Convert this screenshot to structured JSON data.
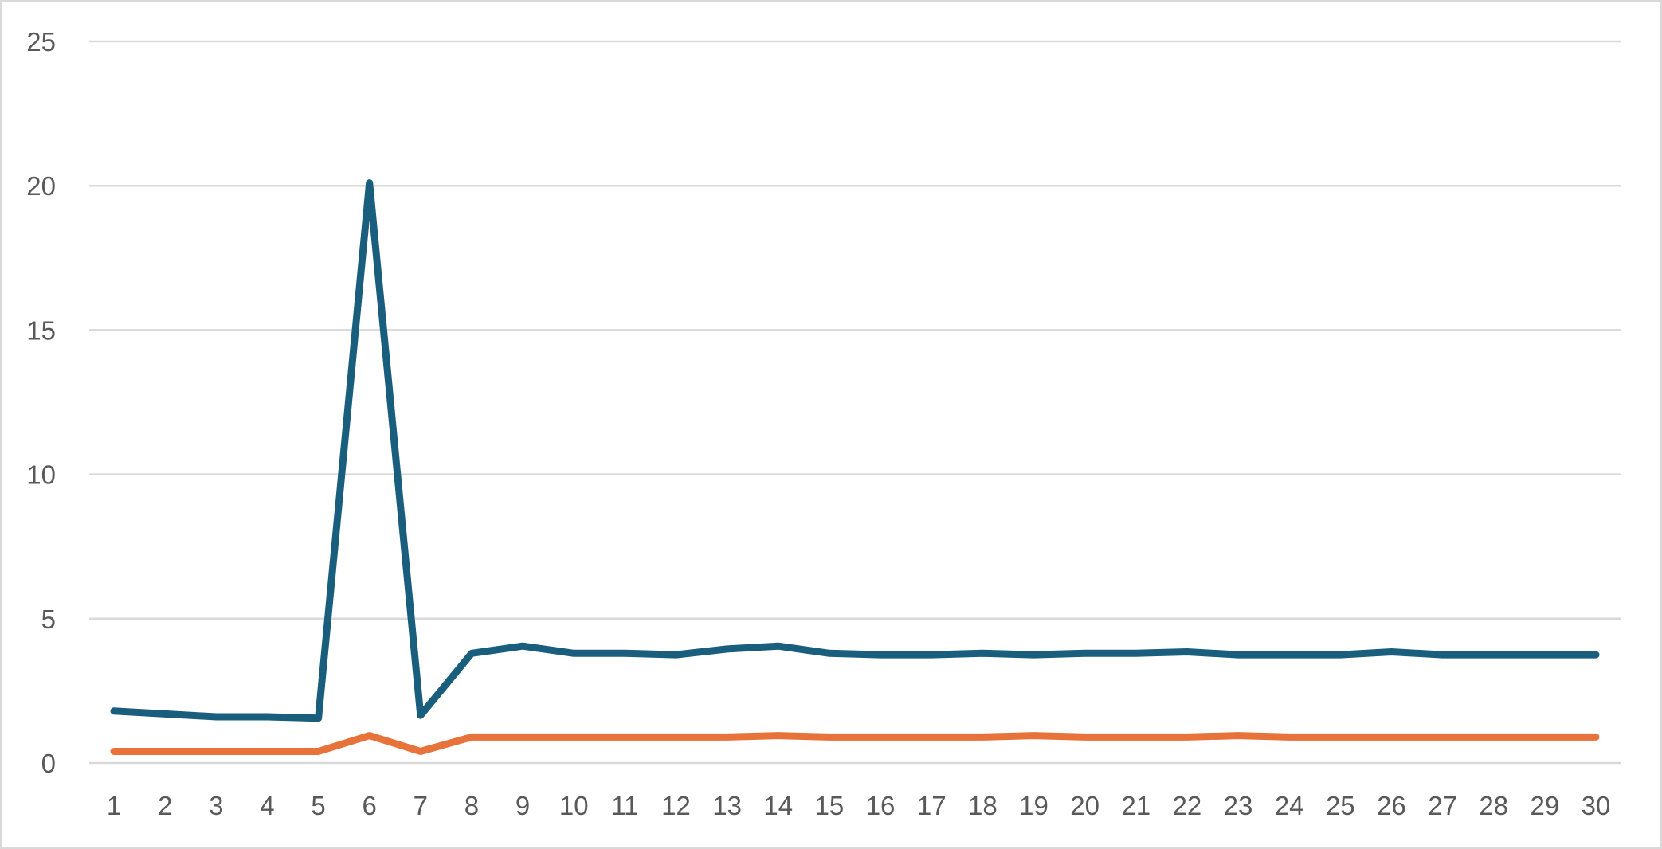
{
  "chart_data": {
    "type": "line",
    "title": "",
    "xlabel": "",
    "ylabel": "",
    "grid": true,
    "legend": "none",
    "ylim": [
      0,
      25
    ],
    "yticks": [
      "0",
      "5",
      "10",
      "15",
      "20",
      "25"
    ],
    "categories": [
      "1",
      "2",
      "3",
      "4",
      "5",
      "6",
      "7",
      "8",
      "9",
      "10",
      "11",
      "12",
      "13",
      "14",
      "15",
      "16",
      "17",
      "18",
      "19",
      "20",
      "21",
      "22",
      "23",
      "24",
      "25",
      "26",
      "27",
      "28",
      "29",
      "30"
    ],
    "series": [
      {
        "color": "#1a5e7e",
        "values": [
          1.8,
          1.7,
          1.6,
          1.6,
          1.55,
          20.1,
          1.65,
          3.8,
          4.05,
          3.8,
          3.8,
          3.75,
          3.95,
          4.05,
          3.8,
          3.75,
          3.75,
          3.8,
          3.75,
          3.8,
          3.8,
          3.85,
          3.75,
          3.75,
          3.75,
          3.85,
          3.75,
          3.75,
          3.75,
          3.75
        ]
      },
      {
        "color": "#e8733a",
        "values": [
          0.4,
          0.4,
          0.4,
          0.4,
          0.4,
          0.95,
          0.4,
          0.9,
          0.9,
          0.9,
          0.9,
          0.9,
          0.9,
          0.95,
          0.9,
          0.9,
          0.9,
          0.9,
          0.95,
          0.9,
          0.9,
          0.9,
          0.95,
          0.9,
          0.9,
          0.9,
          0.9,
          0.9,
          0.9,
          0.9
        ]
      }
    ]
  }
}
